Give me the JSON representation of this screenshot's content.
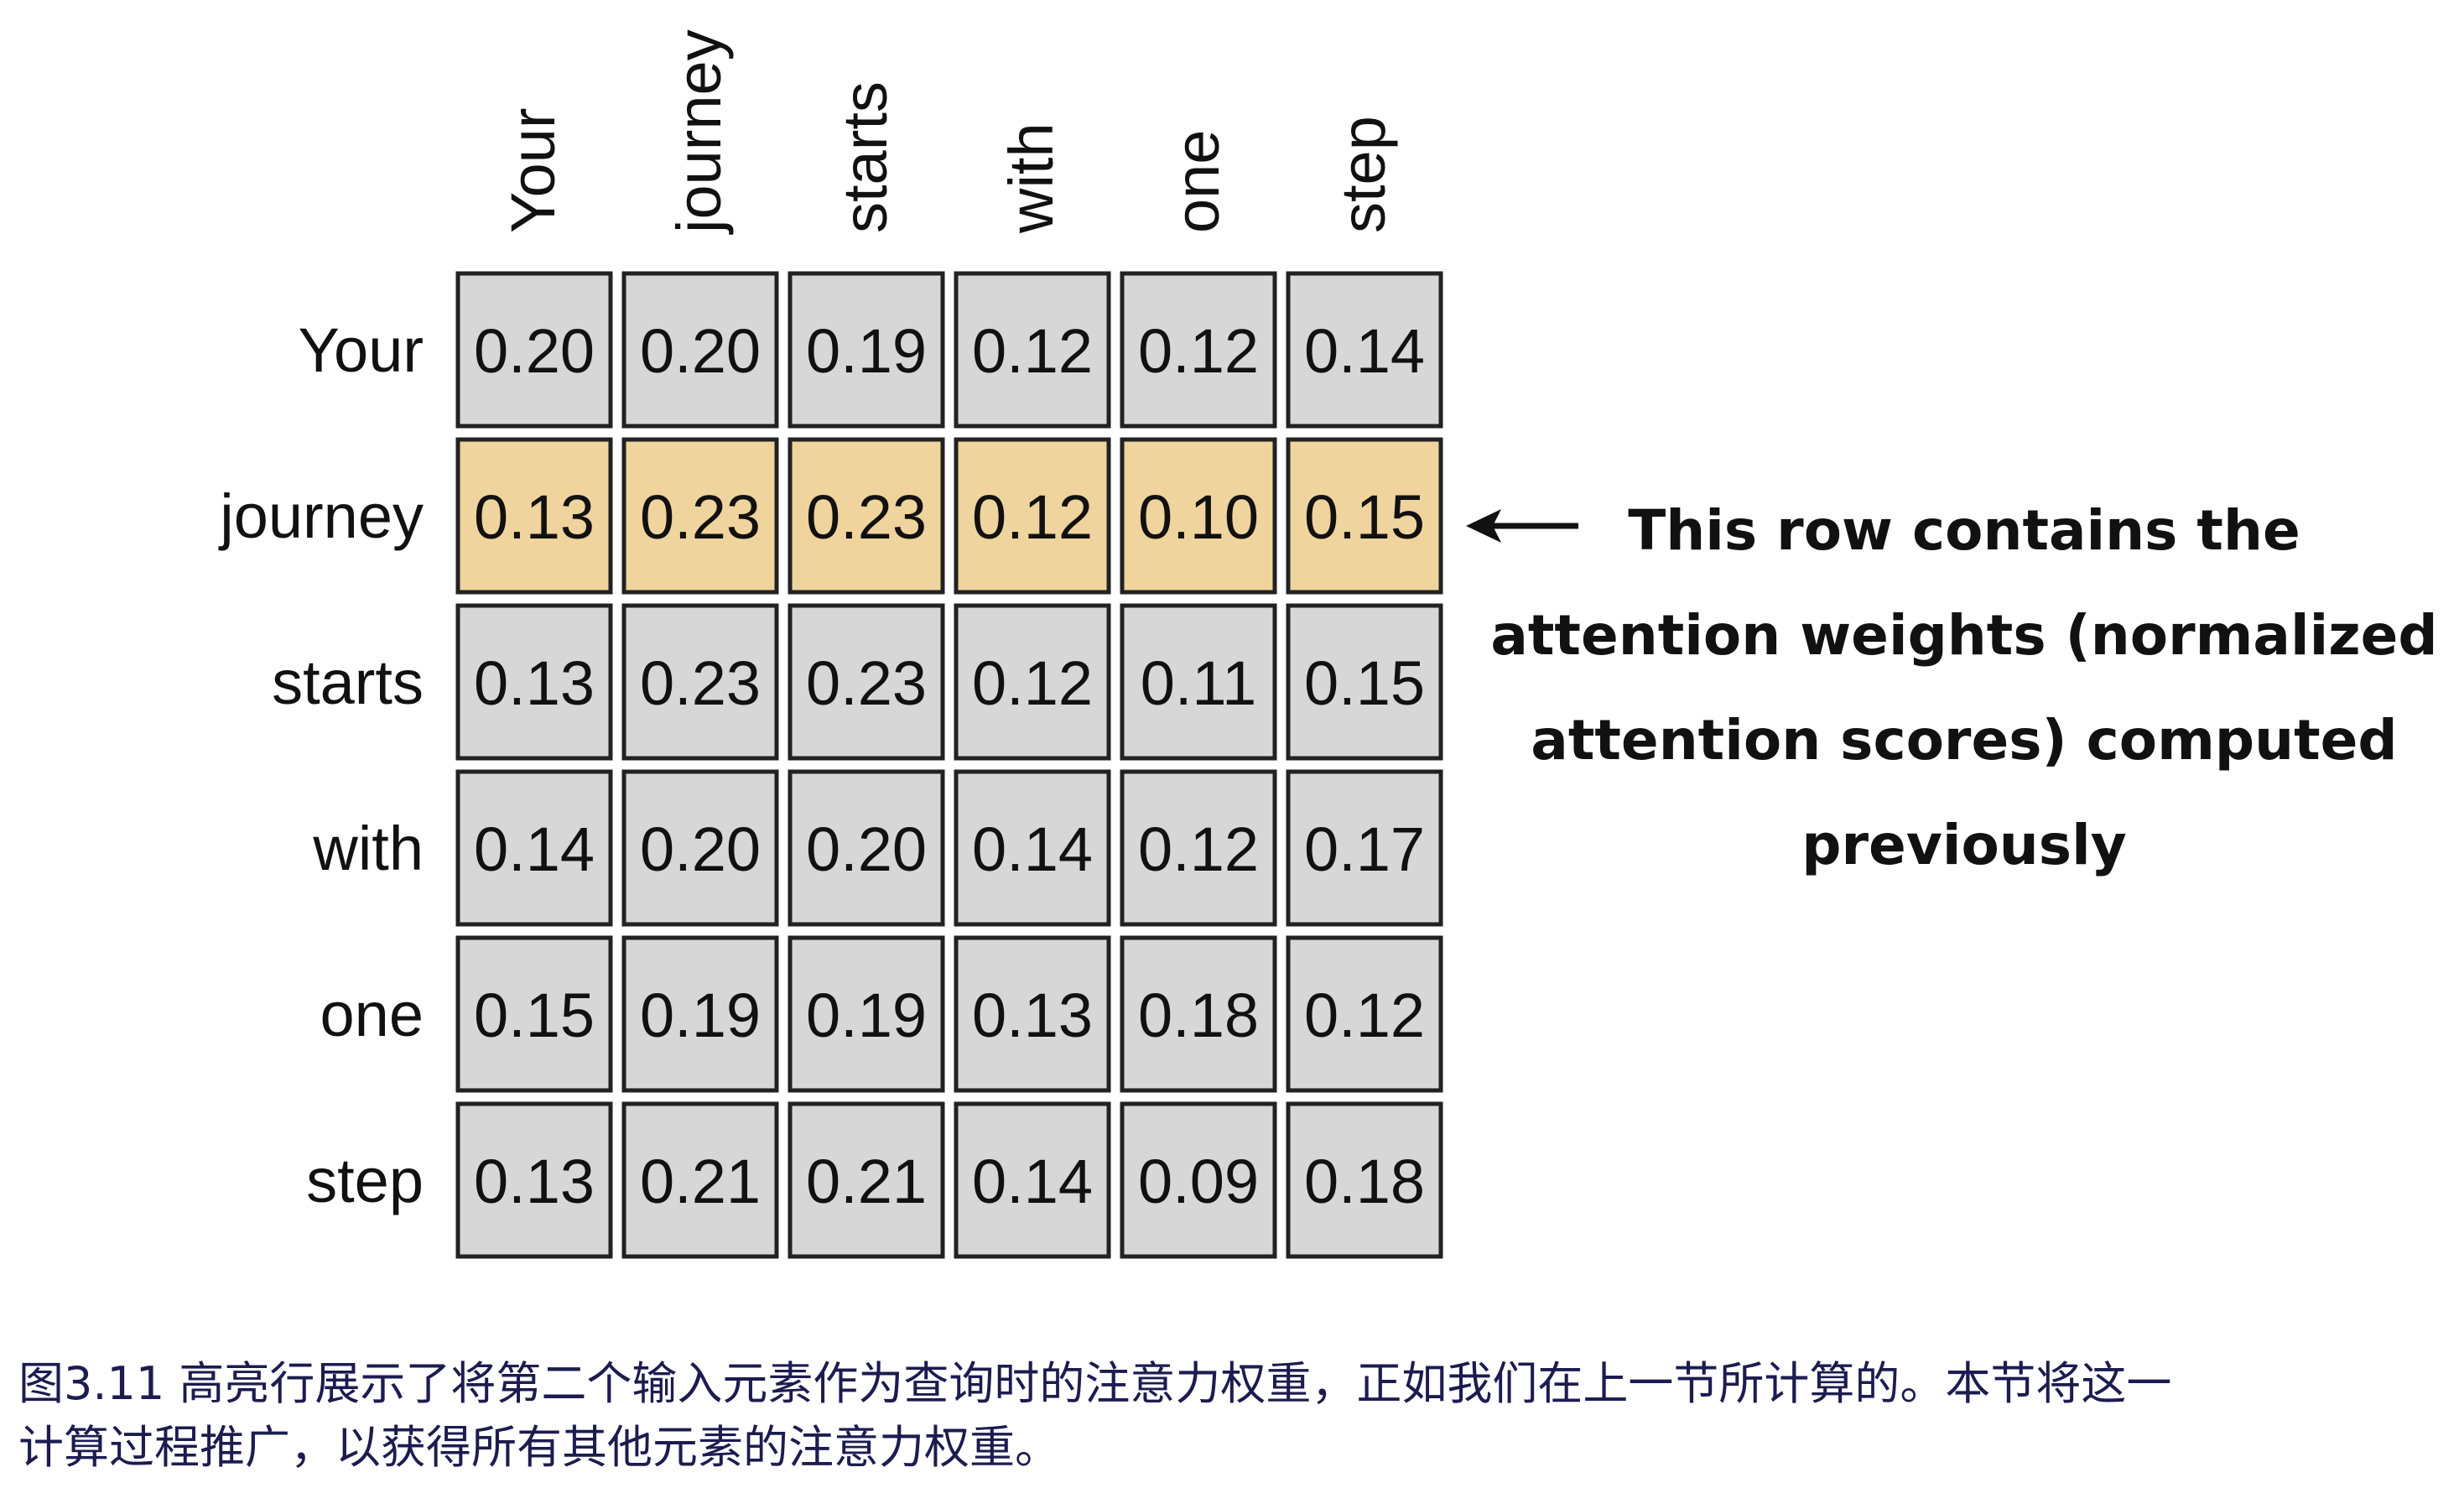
{
  "tokens": [
    "Your",
    "journey",
    "starts",
    "with",
    "one",
    "step"
  ],
  "weights": [
    [
      "0.20",
      "0.20",
      "0.19",
      "0.12",
      "0.12",
      "0.14"
    ],
    [
      "0.13",
      "0.23",
      "0.23",
      "0.12",
      "0.10",
      "0.15"
    ],
    [
      "0.13",
      "0.23",
      "0.23",
      "0.12",
      "0.11",
      "0.15"
    ],
    [
      "0.14",
      "0.20",
      "0.20",
      "0.14",
      "0.12",
      "0.17"
    ],
    [
      "0.15",
      "0.19",
      "0.19",
      "0.13",
      "0.18",
      "0.12"
    ],
    [
      "0.13",
      "0.21",
      "0.21",
      "0.14",
      "0.09",
      "0.18"
    ]
  ],
  "highlighted_row": 1,
  "colors": {
    "cell": "#d7d7d7",
    "highlight": "#f0d49e",
    "border": "#222222",
    "caption": "#1c1c50"
  },
  "annotation": {
    "lines": [
      "This row contains the",
      "attention weights (normalized",
      "attention scores) computed",
      "previously"
    ],
    "icon": "left-arrow-icon"
  },
  "caption": {
    "line1": "图3.11 高亮行展示了将第二个输入元素作为查询时的注意力权重，正如我们在上一节所计算的。本节将这一",
    "line2": "计算过程推广，以获得所有其他元素的注意力权重。"
  }
}
